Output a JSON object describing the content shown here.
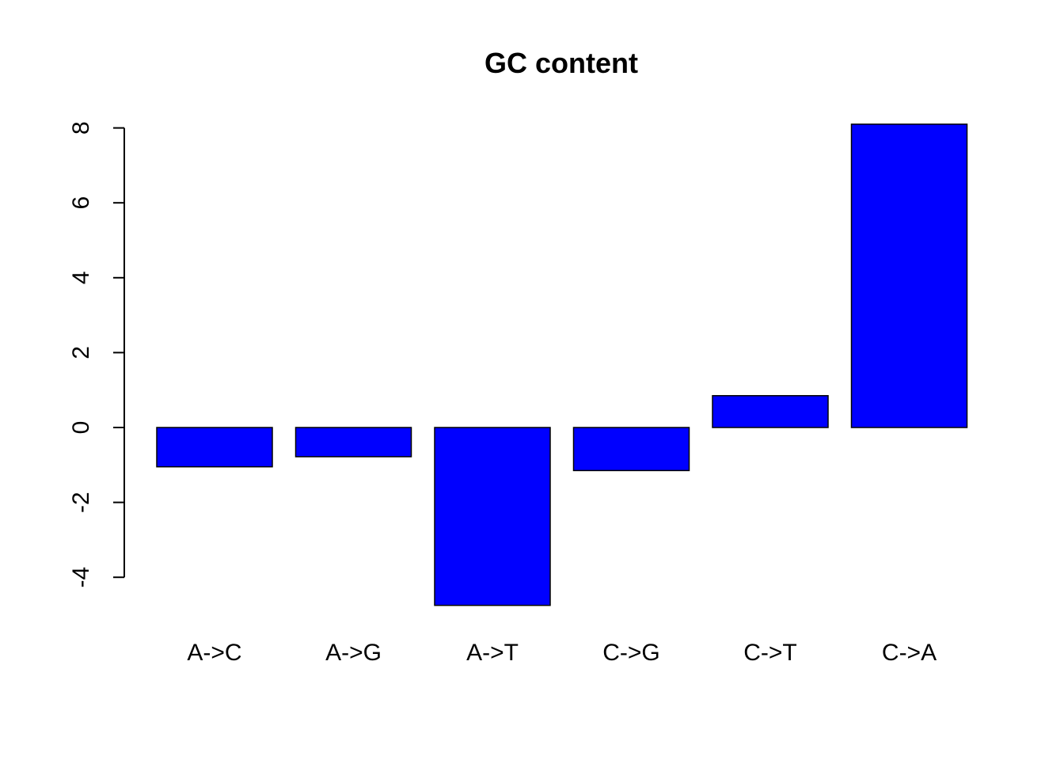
{
  "chart_data": {
    "type": "bar",
    "title": "GC content",
    "xlabel": "",
    "ylabel": "",
    "categories": [
      "A->C",
      "A->G",
      "A->T",
      "C->G",
      "C->T",
      "C->A"
    ],
    "values": [
      -1.05,
      -0.78,
      -4.75,
      -1.15,
      0.85,
      8.1
    ],
    "yticks": [
      "-4",
      "-2",
      "0",
      "2",
      "4",
      "6",
      "8"
    ],
    "ylim": [
      -4.75,
      8.1
    ],
    "bar_color": "#0000ff",
    "grid": false,
    "legend": "none"
  }
}
